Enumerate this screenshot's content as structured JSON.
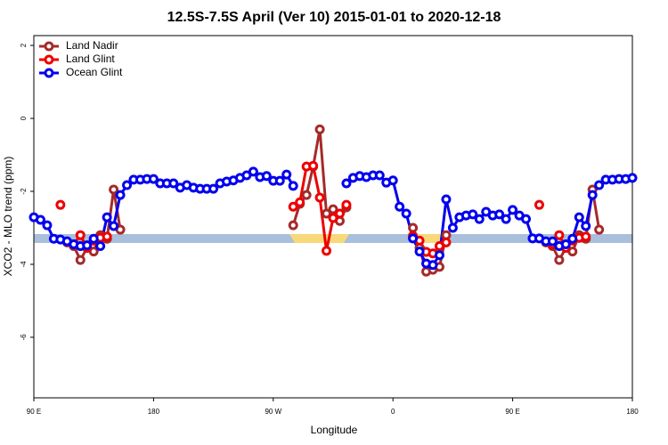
{
  "chart_data": {
    "type": "line",
    "title": "12.5S-7.5S April (Ver 10)   2015-01-01 to 2020-12-18",
    "x_label": "Longitude",
    "y_label": "XCO2 - MLO trend (ppm)",
    "x": [
      90,
      95,
      100,
      105,
      110,
      115,
      120,
      125,
      130,
      135,
      140,
      145,
      150,
      155,
      160,
      165,
      170,
      175,
      180,
      185,
      190,
      195,
      200,
      205,
      210,
      215,
      220,
      225,
      230,
      235,
      240,
      245,
      250,
      255,
      260,
      265,
      270,
      275,
      280,
      285,
      290,
      295,
      300,
      305,
      310,
      315,
      320,
      325,
      330,
      335,
      340,
      345,
      350,
      355,
      360,
      365,
      370,
      375,
      380,
      385,
      390,
      395,
      400,
      405,
      410,
      415,
      420,
      425,
      430,
      435,
      440,
      445,
      450,
      455,
      460,
      465,
      470,
      475,
      480,
      485,
      490,
      495,
      500,
      505,
      510,
      515,
      520,
      525,
      530,
      535,
      540
    ],
    "series": [
      {
        "name": "Land Nadir",
        "color": "#a52a2a",
        "values": [
          null,
          null,
          null,
          null,
          null,
          -3.4,
          -3.5,
          -3.88,
          -3.55,
          -3.65,
          -3.2,
          -3.3,
          -1.95,
          -3.05,
          null,
          null,
          null,
          null,
          null,
          null,
          null,
          null,
          null,
          null,
          null,
          null,
          null,
          null,
          null,
          null,
          null,
          null,
          null,
          null,
          null,
          null,
          null,
          null,
          null,
          -2.93,
          -2.34,
          -2.1,
          -1.32,
          -0.3,
          -2.61,
          -2.49,
          -2.81,
          -2.44,
          null,
          null,
          null,
          null,
          null,
          null,
          null,
          null,
          null,
          -3.0,
          -3.55,
          -4.2,
          -4.15,
          -4.07,
          -3.2,
          null,
          null,
          null,
          null,
          null,
          null,
          null,
          null,
          null,
          null,
          null,
          null,
          null,
          null,
          -3.4,
          -3.5,
          -3.88,
          -3.55,
          -3.65,
          -3.2,
          -3.3,
          -1.95,
          -3.05,
          null,
          null,
          null,
          null,
          null
        ]
      },
      {
        "name": "Land Glint",
        "color": "#ee0000",
        "values": [
          null,
          null,
          null,
          null,
          -2.37,
          null,
          -3.45,
          -3.2,
          -3.55,
          -3.35,
          -3.27,
          -3.24,
          null,
          null,
          null,
          null,
          null,
          null,
          null,
          null,
          null,
          null,
          null,
          null,
          null,
          null,
          null,
          null,
          null,
          null,
          null,
          null,
          null,
          null,
          null,
          null,
          null,
          null,
          null,
          -2.42,
          -2.3,
          -1.32,
          -1.3,
          -2.17,
          -3.63,
          -2.73,
          -2.61,
          -2.37,
          null,
          null,
          null,
          null,
          null,
          null,
          null,
          null,
          null,
          -3.22,
          -3.35,
          -3.66,
          -3.7,
          -3.5,
          -3.4,
          null,
          null,
          null,
          null,
          null,
          null,
          null,
          null,
          null,
          null,
          null,
          null,
          null,
          -2.37,
          null,
          -3.45,
          -3.2,
          -3.55,
          -3.35,
          -3.27,
          -3.24,
          null,
          null,
          null,
          null,
          null,
          null,
          null
        ]
      },
      {
        "name": "Ocean Glint",
        "color": "#0000ee",
        "values": [
          -2.71,
          -2.78,
          -2.93,
          -3.3,
          -3.32,
          -3.37,
          -3.45,
          -3.5,
          -3.48,
          -3.3,
          -3.5,
          -2.71,
          -2.95,
          -2.1,
          -1.83,
          -1.68,
          -1.68,
          -1.66,
          -1.66,
          -1.78,
          -1.78,
          -1.78,
          -1.9,
          -1.83,
          -1.9,
          -1.93,
          -1.93,
          -1.93,
          -1.78,
          -1.73,
          -1.7,
          -1.63,
          -1.56,
          -1.46,
          -1.61,
          -1.58,
          -1.71,
          -1.71,
          -1.54,
          -1.85,
          null,
          null,
          null,
          null,
          null,
          null,
          null,
          -1.78,
          -1.63,
          -1.58,
          -1.61,
          -1.56,
          -1.56,
          -1.76,
          -1.7,
          -2.42,
          -2.61,
          -3.29,
          -3.65,
          -3.98,
          -4.02,
          -3.75,
          -2.22,
          -3.0,
          -2.71,
          -2.66,
          -2.63,
          -2.76,
          -2.56,
          -2.66,
          -2.63,
          -2.76,
          -2.51,
          -2.66,
          -2.76,
          -3.29,
          -3.29,
          -3.37,
          -3.37,
          -3.5,
          -3.45,
          -3.3,
          -2.71,
          -2.95,
          -2.1,
          -1.83,
          -1.68,
          -1.68,
          -1.66,
          -1.66,
          -1.63
        ]
      }
    ],
    "xlim": [
      90,
      540
    ],
    "xticks": [
      {
        "value": 90,
        "label": "90 E"
      },
      {
        "value": 180,
        "label": "180"
      },
      {
        "value": 270,
        "label": "90 W"
      },
      {
        "value": 360,
        "label": "0"
      },
      {
        "value": 450,
        "label": "90 E"
      },
      {
        "value": 540,
        "label": "180"
      }
    ],
    "ylim": [
      -7.66,
      2.27
    ],
    "yticks": [
      2,
      0,
      -2,
      -4,
      -6
    ],
    "legend": "top-left"
  }
}
